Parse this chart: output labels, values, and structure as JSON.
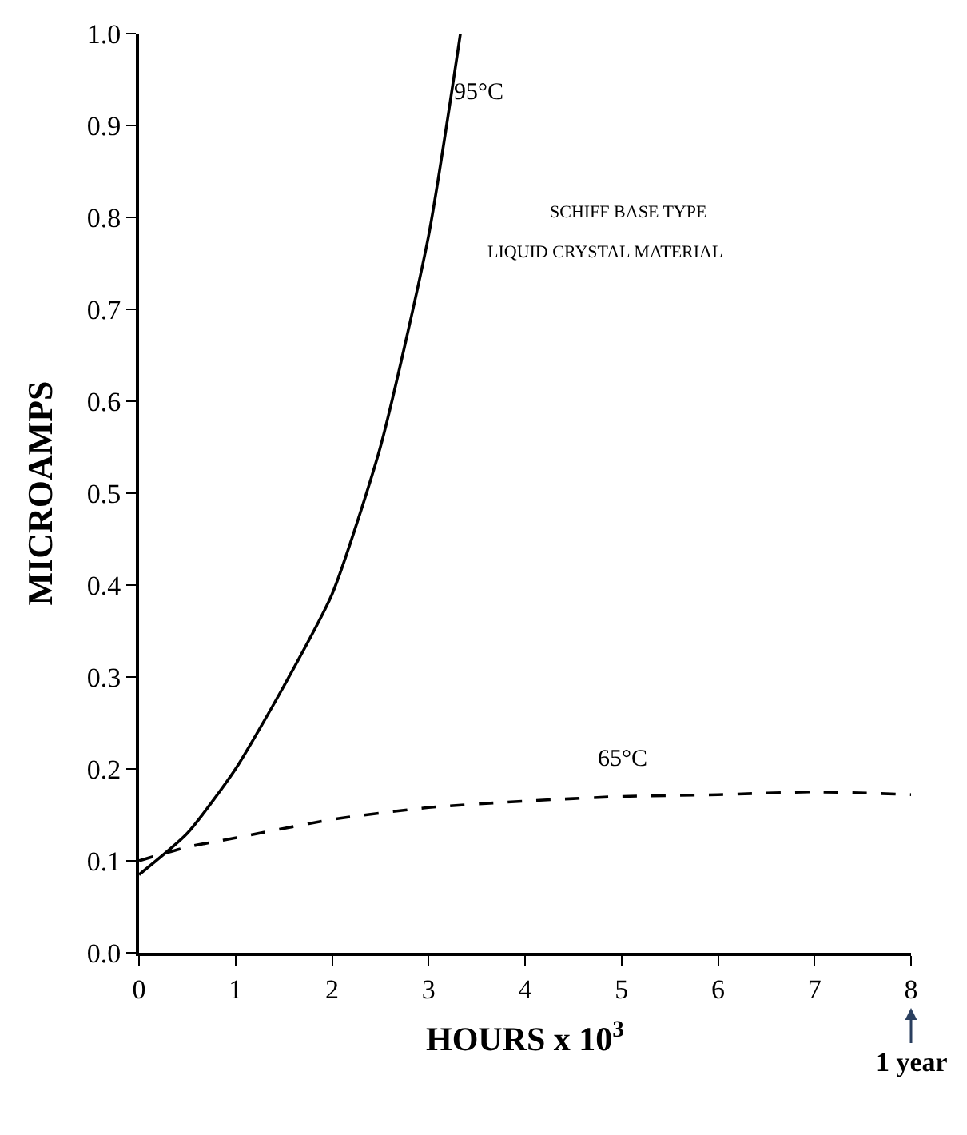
{
  "chart_data": {
    "type": "line",
    "xlabel": "HOURS x 10$^{3}$",
    "ylabel": "MICROAMPS",
    "series": [
      {
        "color": "#000000",
        "line_style": "solid",
        "x": [
          0,
          0.5,
          1,
          1.5,
          2,
          2.5,
          3,
          3.33
        ],
        "values": [
          0.085,
          0.13,
          0.2,
          0.29,
          0.39,
          0.55,
          0.78,
          1.0
        ]
      },
      {
        "color": "#000000",
        "line_style": "dashed",
        "x": [
          0,
          0.5,
          1,
          2,
          3,
          4,
          5,
          6,
          7,
          8
        ],
        "values": [
          0.1,
          0.115,
          0.125,
          0.145,
          0.158,
          0.165,
          0.17,
          0.172,
          0.175,
          0.172
        ]
      }
    ],
    "xlim": [
      0,
      8
    ],
    "xticks": [
      0,
      1,
      2,
      3,
      4,
      5,
      6,
      7,
      8
    ],
    "ylim": [
      0,
      1
    ],
    "yticks": [
      {
        "value": 0,
        "label": "0.0"
      },
      {
        "value": 0.1,
        "label": "0.1"
      },
      {
        "value": 0.2,
        "label": "0.2"
      },
      {
        "value": 0.3,
        "label": "0.3"
      },
      {
        "value": 0.4,
        "label": "0.4"
      },
      {
        "value": 0.5,
        "label": "0.5"
      },
      {
        "value": 0.6,
        "label": "0.6"
      },
      {
        "value": 0.7,
        "label": "0.7"
      },
      {
        "value": 0.8,
        "label": "0.8"
      },
      {
        "value": 0.9,
        "label": "0.9"
      },
      {
        "value": 1,
        "label": "1.0"
      }
    ],
    "annotations": [
      "95°C",
      "65°C",
      "SCHIFF BASE TYPE",
      "LIQUID CRYSTAL MATERIAL",
      "1 year"
    ],
    "marker": "none"
  }
}
